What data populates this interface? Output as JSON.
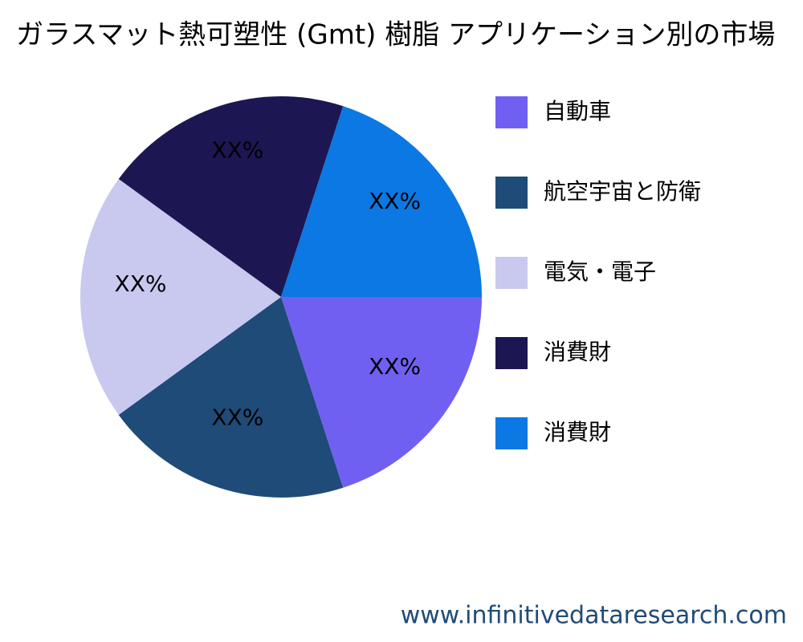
{
  "chart_data": {
    "type": "pie",
    "title": "ガラスマット熱可塑性 (Gmt) 樹脂 アプリケーション別の市場",
    "categories": [
      "自動車",
      "航空宇宙と防衛",
      "電気・電子",
      "消費財",
      "消費財"
    ],
    "values": [
      20,
      20,
      20,
      20,
      20
    ],
    "value_labels": [
      "XX%",
      "XX%",
      "XX%",
      "XX%",
      "XX%"
    ],
    "colors": [
      "#7060f2",
      "#1f4b78",
      "#c9c9f0",
      "#1c1752",
      "#0b78e3"
    ],
    "legend": "right"
  },
  "watermark": "www.infinitivedataresearch.com"
}
